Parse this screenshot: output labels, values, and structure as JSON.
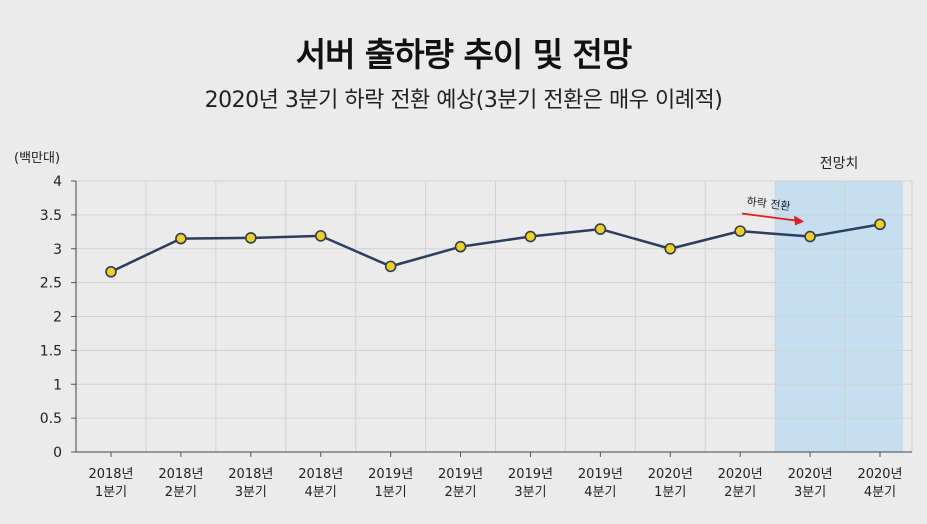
{
  "title": "서버 출하량 추이 및 전망",
  "subtitle": "2020년 3분기 하락 전환 예상(3분기 전환은 매우 이례적)",
  "chart_data": {
    "type": "line",
    "unit_label": "(백만대)",
    "categories": [
      [
        "2018년",
        "1분기"
      ],
      [
        "2018년",
        "2분기"
      ],
      [
        "2018년",
        "3분기"
      ],
      [
        "2018년",
        "4분기"
      ],
      [
        "2019년",
        "1분기"
      ],
      [
        "2019년",
        "2분기"
      ],
      [
        "2019년",
        "3분기"
      ],
      [
        "2019년",
        "4분기"
      ],
      [
        "2020년",
        "1분기"
      ],
      [
        "2020년",
        "2분기"
      ],
      [
        "2020년",
        "3분기"
      ],
      [
        "2020년",
        "4분기"
      ]
    ],
    "values": [
      2.66,
      3.15,
      3.16,
      3.19,
      2.74,
      3.03,
      3.18,
      3.29,
      3.0,
      3.26,
      3.18,
      3.36
    ],
    "ylim": [
      0,
      4
    ],
    "yticks": [
      "0",
      "0.5",
      "1",
      "1.5",
      "2",
      "2.5",
      "3",
      "3.5",
      "4"
    ],
    "grid": true,
    "forecast_label": "전망치",
    "forecast_start_index": 10,
    "annotation": "하락 전환",
    "colors": {
      "line": "#2d3e5c",
      "marker_fill": "#f0d21e",
      "marker_stroke": "#2d3e5c",
      "forecast_band": "#c6dff0",
      "annotation_arrow": "#e02020",
      "grid": "#d2d2d2"
    }
  }
}
